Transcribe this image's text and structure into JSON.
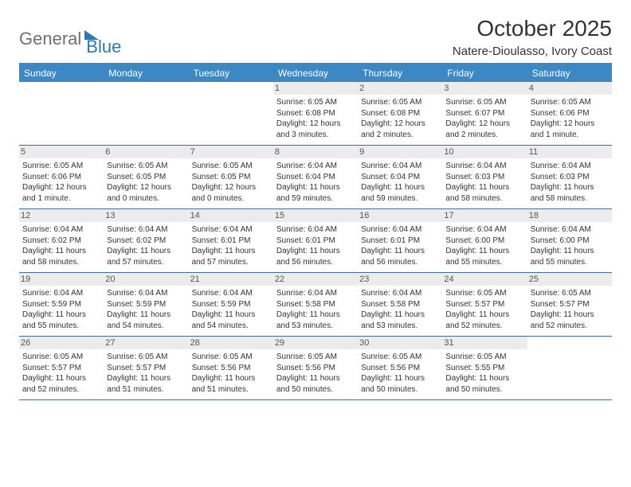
{
  "logo": {
    "part1": "General",
    "part2": "Blue"
  },
  "title": "October 2025",
  "location": "Natere-Dioulasso, Ivory Coast",
  "colors": {
    "header_bg": "#3b88c4",
    "header_text": "#ffffff",
    "daynum_bg": "#ececec",
    "border": "#3b6e9e",
    "logo_gray": "#6f6f6f",
    "logo_blue": "#2a7ab0"
  },
  "days_of_week": [
    "Sunday",
    "Monday",
    "Tuesday",
    "Wednesday",
    "Thursday",
    "Friday",
    "Saturday"
  ],
  "weeks": [
    [
      {
        "n": "",
        "sr": "",
        "ss": "",
        "dl": ""
      },
      {
        "n": "",
        "sr": "",
        "ss": "",
        "dl": ""
      },
      {
        "n": "",
        "sr": "",
        "ss": "",
        "dl": ""
      },
      {
        "n": "1",
        "sr": "Sunrise: 6:05 AM",
        "ss": "Sunset: 6:08 PM",
        "dl": "Daylight: 12 hours and 3 minutes."
      },
      {
        "n": "2",
        "sr": "Sunrise: 6:05 AM",
        "ss": "Sunset: 6:08 PM",
        "dl": "Daylight: 12 hours and 2 minutes."
      },
      {
        "n": "3",
        "sr": "Sunrise: 6:05 AM",
        "ss": "Sunset: 6:07 PM",
        "dl": "Daylight: 12 hours and 2 minutes."
      },
      {
        "n": "4",
        "sr": "Sunrise: 6:05 AM",
        "ss": "Sunset: 6:06 PM",
        "dl": "Daylight: 12 hours and 1 minute."
      }
    ],
    [
      {
        "n": "5",
        "sr": "Sunrise: 6:05 AM",
        "ss": "Sunset: 6:06 PM",
        "dl": "Daylight: 12 hours and 1 minute."
      },
      {
        "n": "6",
        "sr": "Sunrise: 6:05 AM",
        "ss": "Sunset: 6:05 PM",
        "dl": "Daylight: 12 hours and 0 minutes."
      },
      {
        "n": "7",
        "sr": "Sunrise: 6:05 AM",
        "ss": "Sunset: 6:05 PM",
        "dl": "Daylight: 12 hours and 0 minutes."
      },
      {
        "n": "8",
        "sr": "Sunrise: 6:04 AM",
        "ss": "Sunset: 6:04 PM",
        "dl": "Daylight: 11 hours and 59 minutes."
      },
      {
        "n": "9",
        "sr": "Sunrise: 6:04 AM",
        "ss": "Sunset: 6:04 PM",
        "dl": "Daylight: 11 hours and 59 minutes."
      },
      {
        "n": "10",
        "sr": "Sunrise: 6:04 AM",
        "ss": "Sunset: 6:03 PM",
        "dl": "Daylight: 11 hours and 58 minutes."
      },
      {
        "n": "11",
        "sr": "Sunrise: 6:04 AM",
        "ss": "Sunset: 6:03 PM",
        "dl": "Daylight: 11 hours and 58 minutes."
      }
    ],
    [
      {
        "n": "12",
        "sr": "Sunrise: 6:04 AM",
        "ss": "Sunset: 6:02 PM",
        "dl": "Daylight: 11 hours and 58 minutes."
      },
      {
        "n": "13",
        "sr": "Sunrise: 6:04 AM",
        "ss": "Sunset: 6:02 PM",
        "dl": "Daylight: 11 hours and 57 minutes."
      },
      {
        "n": "14",
        "sr": "Sunrise: 6:04 AM",
        "ss": "Sunset: 6:01 PM",
        "dl": "Daylight: 11 hours and 57 minutes."
      },
      {
        "n": "15",
        "sr": "Sunrise: 6:04 AM",
        "ss": "Sunset: 6:01 PM",
        "dl": "Daylight: 11 hours and 56 minutes."
      },
      {
        "n": "16",
        "sr": "Sunrise: 6:04 AM",
        "ss": "Sunset: 6:01 PM",
        "dl": "Daylight: 11 hours and 56 minutes."
      },
      {
        "n": "17",
        "sr": "Sunrise: 6:04 AM",
        "ss": "Sunset: 6:00 PM",
        "dl": "Daylight: 11 hours and 55 minutes."
      },
      {
        "n": "18",
        "sr": "Sunrise: 6:04 AM",
        "ss": "Sunset: 6:00 PM",
        "dl": "Daylight: 11 hours and 55 minutes."
      }
    ],
    [
      {
        "n": "19",
        "sr": "Sunrise: 6:04 AM",
        "ss": "Sunset: 5:59 PM",
        "dl": "Daylight: 11 hours and 55 minutes."
      },
      {
        "n": "20",
        "sr": "Sunrise: 6:04 AM",
        "ss": "Sunset: 5:59 PM",
        "dl": "Daylight: 11 hours and 54 minutes."
      },
      {
        "n": "21",
        "sr": "Sunrise: 6:04 AM",
        "ss": "Sunset: 5:59 PM",
        "dl": "Daylight: 11 hours and 54 minutes."
      },
      {
        "n": "22",
        "sr": "Sunrise: 6:04 AM",
        "ss": "Sunset: 5:58 PM",
        "dl": "Daylight: 11 hours and 53 minutes."
      },
      {
        "n": "23",
        "sr": "Sunrise: 6:04 AM",
        "ss": "Sunset: 5:58 PM",
        "dl": "Daylight: 11 hours and 53 minutes."
      },
      {
        "n": "24",
        "sr": "Sunrise: 6:05 AM",
        "ss": "Sunset: 5:57 PM",
        "dl": "Daylight: 11 hours and 52 minutes."
      },
      {
        "n": "25",
        "sr": "Sunrise: 6:05 AM",
        "ss": "Sunset: 5:57 PM",
        "dl": "Daylight: 11 hours and 52 minutes."
      }
    ],
    [
      {
        "n": "26",
        "sr": "Sunrise: 6:05 AM",
        "ss": "Sunset: 5:57 PM",
        "dl": "Daylight: 11 hours and 52 minutes."
      },
      {
        "n": "27",
        "sr": "Sunrise: 6:05 AM",
        "ss": "Sunset: 5:57 PM",
        "dl": "Daylight: 11 hours and 51 minutes."
      },
      {
        "n": "28",
        "sr": "Sunrise: 6:05 AM",
        "ss": "Sunset: 5:56 PM",
        "dl": "Daylight: 11 hours and 51 minutes."
      },
      {
        "n": "29",
        "sr": "Sunrise: 6:05 AM",
        "ss": "Sunset: 5:56 PM",
        "dl": "Daylight: 11 hours and 50 minutes."
      },
      {
        "n": "30",
        "sr": "Sunrise: 6:05 AM",
        "ss": "Sunset: 5:56 PM",
        "dl": "Daylight: 11 hours and 50 minutes."
      },
      {
        "n": "31",
        "sr": "Sunrise: 6:05 AM",
        "ss": "Sunset: 5:55 PM",
        "dl": "Daylight: 11 hours and 50 minutes."
      },
      {
        "n": "",
        "sr": "",
        "ss": "",
        "dl": ""
      }
    ]
  ]
}
